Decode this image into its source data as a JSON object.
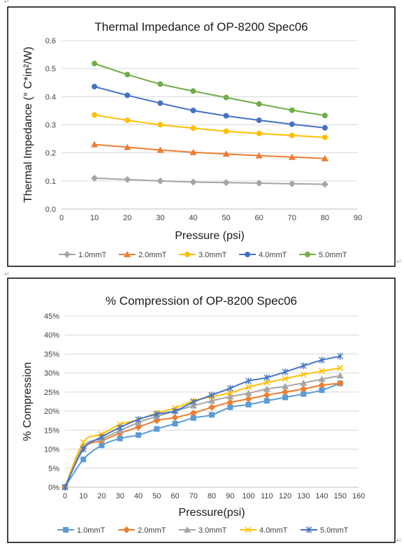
{
  "page": {
    "paragraph_mark": "↵"
  },
  "chart_data": [
    {
      "type": "line",
      "title": "Thermal Impedance of OP-8200 Spec06",
      "xlabel": "Pressure (psi)",
      "ylabel": "Thermal Impedance (° C*in²/W)",
      "xlim": [
        0,
        90
      ],
      "ylim": [
        0,
        0.6
      ],
      "x_ticks": [
        0,
        10,
        20,
        30,
        40,
        50,
        60,
        70,
        80,
        90
      ],
      "y_ticks": [
        0,
        0.1,
        0.2,
        0.3,
        0.4,
        0.5,
        0.6
      ],
      "y_tick_labels": [
        "0.0",
        "0.1",
        "0.2",
        "0.3",
        "0.4",
        "0.5",
        "0.6"
      ],
      "grid": "horizontal",
      "legend_position": "bottom",
      "x": [
        10,
        20,
        30,
        40,
        50,
        60,
        70,
        80
      ],
      "series": [
        {
          "name": "1.0mmT",
          "color": "#a5a5a5",
          "marker": "diamond",
          "values": [
            0.11,
            0.105,
            0.1,
            0.096,
            0.094,
            0.092,
            0.09,
            0.088
          ]
        },
        {
          "name": "2.0mmT",
          "color": "#ed7d31",
          "marker": "triangle",
          "values": [
            0.23,
            0.22,
            0.21,
            0.202,
            0.196,
            0.19,
            0.185,
            0.18
          ]
        },
        {
          "name": "3.0mmT",
          "color": "#ffc000",
          "marker": "circle",
          "values": [
            0.335,
            0.316,
            0.3,
            0.288,
            0.277,
            0.269,
            0.262,
            0.255
          ]
        },
        {
          "name": "4.0mmT",
          "color": "#4472c4",
          "marker": "circle",
          "values": [
            0.436,
            0.405,
            0.377,
            0.351,
            0.332,
            0.316,
            0.302,
            0.289
          ]
        },
        {
          "name": "5.0mmT",
          "color": "#70ad47",
          "marker": "circle",
          "values": [
            0.518,
            0.479,
            0.445,
            0.42,
            0.397,
            0.374,
            0.352,
            0.333
          ]
        }
      ]
    },
    {
      "type": "line",
      "title": "% Compression of OP-8200 Spec06",
      "xlabel": "Pressure(psi)",
      "ylabel": "% Compression",
      "xlim": [
        0,
        160
      ],
      "ylim": [
        0,
        45
      ],
      "x_ticks": [
        0,
        10,
        20,
        30,
        40,
        50,
        60,
        70,
        80,
        90,
        100,
        110,
        120,
        130,
        140,
        150,
        160
      ],
      "y_ticks": [
        0,
        5,
        10,
        15,
        20,
        25,
        30,
        35,
        40,
        45
      ],
      "y_tick_labels": [
        "0%",
        "5%",
        "10%",
        "15%",
        "20%",
        "25%",
        "30%",
        "35%",
        "40%",
        "45%"
      ],
      "grid": "horizontal",
      "legend_position": "bottom",
      "x": [
        0,
        10,
        20,
        30,
        40,
        50,
        60,
        70,
        80,
        90,
        100,
        110,
        120,
        130,
        140,
        150
      ],
      "series": [
        {
          "name": "1.0mmT",
          "color": "#5b9bd5",
          "marker": "square",
          "values": [
            0,
            7.3,
            11.0,
            12.8,
            13.7,
            15.3,
            16.7,
            18.2,
            19.0,
            21.0,
            21.7,
            22.7,
            23.6,
            24.5,
            25.5,
            27.3
          ]
        },
        {
          "name": "2.0mmT",
          "color": "#ed7d31",
          "marker": "diamond",
          "values": [
            0,
            10.2,
            12.2,
            14.2,
            15.8,
            17.5,
            18.3,
            19.5,
            21.0,
            22.3,
            23.2,
            24.2,
            25.0,
            25.8,
            26.8,
            27.3
          ]
        },
        {
          "name": "3.0mmT",
          "color": "#a5a5a5",
          "marker": "triangle",
          "values": [
            0,
            10.7,
            12.7,
            14.9,
            17.0,
            18.6,
            20.0,
            21.4,
            22.7,
            23.8,
            24.7,
            25.8,
            26.5,
            27.4,
            28.4,
            29.3
          ]
        },
        {
          "name": "4.0mmT",
          "color": "#ffc000",
          "marker": "x",
          "values": [
            0,
            11.8,
            13.9,
            16.5,
            17.7,
            19.5,
            20.8,
            22.7,
            23.8,
            24.8,
            26.3,
            27.5,
            28.5,
            29.6,
            30.5,
            31.3
          ]
        },
        {
          "name": "5.0mmT",
          "color": "#4472c4",
          "marker": "star",
          "values": [
            0,
            10.0,
            13.2,
            15.7,
            17.8,
            19.2,
            20.0,
            22.4,
            24.2,
            26.0,
            27.9,
            28.8,
            30.3,
            31.9,
            33.4,
            34.4
          ]
        }
      ]
    }
  ]
}
